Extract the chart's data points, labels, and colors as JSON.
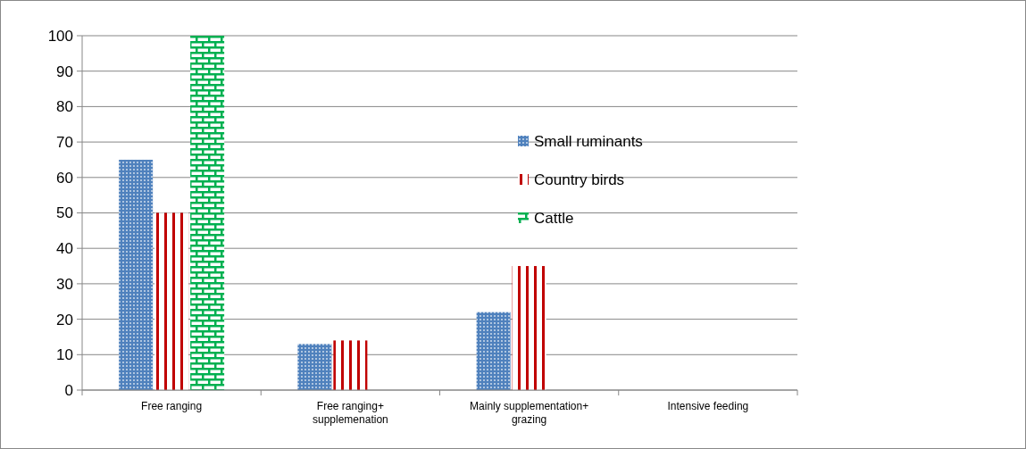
{
  "chart_data": {
    "type": "bar",
    "categories": [
      "Free ranging",
      "Free ranging+ supplemenation",
      "Mainly supplementation+ grazing",
      "Intensive feeding"
    ],
    "series": [
      {
        "name": "Small ruminants",
        "color": "#4f81bd",
        "values": [
          65,
          13,
          22,
          0
        ]
      },
      {
        "name": "Country birds",
        "color": "#c00000",
        "values": [
          50,
          14,
          35,
          0
        ]
      },
      {
        "name": "Cattle",
        "color": "#00b050",
        "values": [
          100,
          0,
          0,
          0
        ]
      }
    ],
    "ylim": [
      0,
      100
    ],
    "yticks": [
      0,
      10,
      20,
      30,
      40,
      50,
      60,
      70,
      80,
      90,
      100
    ],
    "grid": "y",
    "legend": "right"
  }
}
